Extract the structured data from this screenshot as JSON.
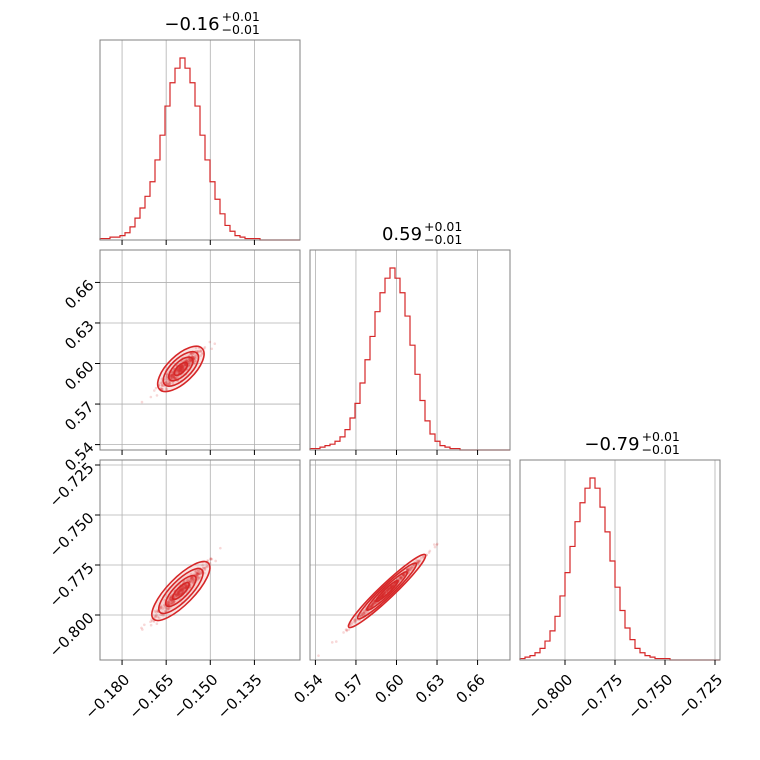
{
  "chart_data": {
    "type": "corner",
    "color": "#d62728",
    "parameters": [
      {
        "title": {
          "value": "−0.16",
          "upper": "+0.01",
          "lower": "−0.01"
        },
        "range": [
          -0.1875,
          -0.1195
        ],
        "ticks": [
          {
            "v": -0.18,
            "label": "−0.180"
          },
          {
            "v": -0.165,
            "label": "−0.165"
          },
          {
            "v": -0.15,
            "label": "−0.150"
          },
          {
            "v": -0.135,
            "label": "−0.135"
          }
        ],
        "hist": {
          "start": -0.1875,
          "step": 0.0017,
          "counts": [
            1,
            1,
            2,
            2,
            3,
            5,
            9,
            15,
            22,
            30,
            40,
            55,
            72,
            92,
            108,
            118,
            125,
            118,
            108,
            92,
            72,
            55,
            40,
            28,
            18,
            10,
            6,
            3,
            2,
            1,
            1,
            1,
            0,
            0,
            0,
            0,
            0,
            0,
            0,
            0
          ]
        }
      },
      {
        "title": {
          "value": "0.59",
          "upper": "+0.01",
          "lower": "−0.01"
        },
        "range": [
          0.536,
          0.684
        ],
        "ticks": [
          {
            "v": 0.54,
            "label": "0.54"
          },
          {
            "v": 0.57,
            "label": "0.57"
          },
          {
            "v": 0.6,
            "label": "0.60"
          },
          {
            "v": 0.63,
            "label": "0.63"
          },
          {
            "v": 0.66,
            "label": "0.66"
          }
        ],
        "hist": {
          "start": 0.536,
          "step": 0.0037,
          "counts": [
            1,
            1,
            2,
            3,
            4,
            6,
            9,
            14,
            22,
            32,
            46,
            62,
            78,
            95,
            108,
            118,
            125,
            118,
            108,
            92,
            72,
            52,
            34,
            20,
            11,
            6,
            3,
            2,
            1,
            1,
            0,
            0,
            0,
            0,
            0,
            0,
            0,
            0,
            0,
            0
          ]
        }
      },
      {
        "title": {
          "value": "−0.79",
          "upper": "+0.01",
          "lower": "−0.01"
        },
        "range": [
          -0.8225,
          -0.7225
        ],
        "ticks": [
          {
            "v": -0.8,
            "label": "−0.800"
          },
          {
            "v": -0.775,
            "label": "−0.775"
          },
          {
            "v": -0.75,
            "label": "−0.750"
          },
          {
            "v": -0.725,
            "label": "−0.725"
          }
        ],
        "hist": {
          "start": -0.8225,
          "step": 0.0025,
          "counts": [
            1,
            2,
            3,
            5,
            8,
            13,
            20,
            30,
            44,
            60,
            78,
            95,
            108,
            118,
            125,
            118,
            105,
            88,
            68,
            50,
            34,
            22,
            14,
            8,
            5,
            3,
            2,
            1,
            1,
            1,
            0,
            0,
            0,
            0,
            0,
            0,
            0,
            0,
            0,
            0
          ]
        }
      }
    ],
    "pairs": [
      {
        "x": 0,
        "y": 1,
        "center": [
          -0.16,
          0.596
        ],
        "slope": 2.1,
        "spread_major": 0.008,
        "spread_minor": 0.0012
      },
      {
        "x": 0,
        "y": 2,
        "center": [
          -0.16,
          -0.788
        ],
        "slope": 1.5,
        "spread_major": 0.008,
        "spread_minor": 0.0009
      },
      {
        "x": 1,
        "y": 2,
        "center": [
          0.593,
          -0.788
        ],
        "slope": 0.64,
        "spread_major": 0.016,
        "spread_minor": 0.0006
      }
    ]
  }
}
